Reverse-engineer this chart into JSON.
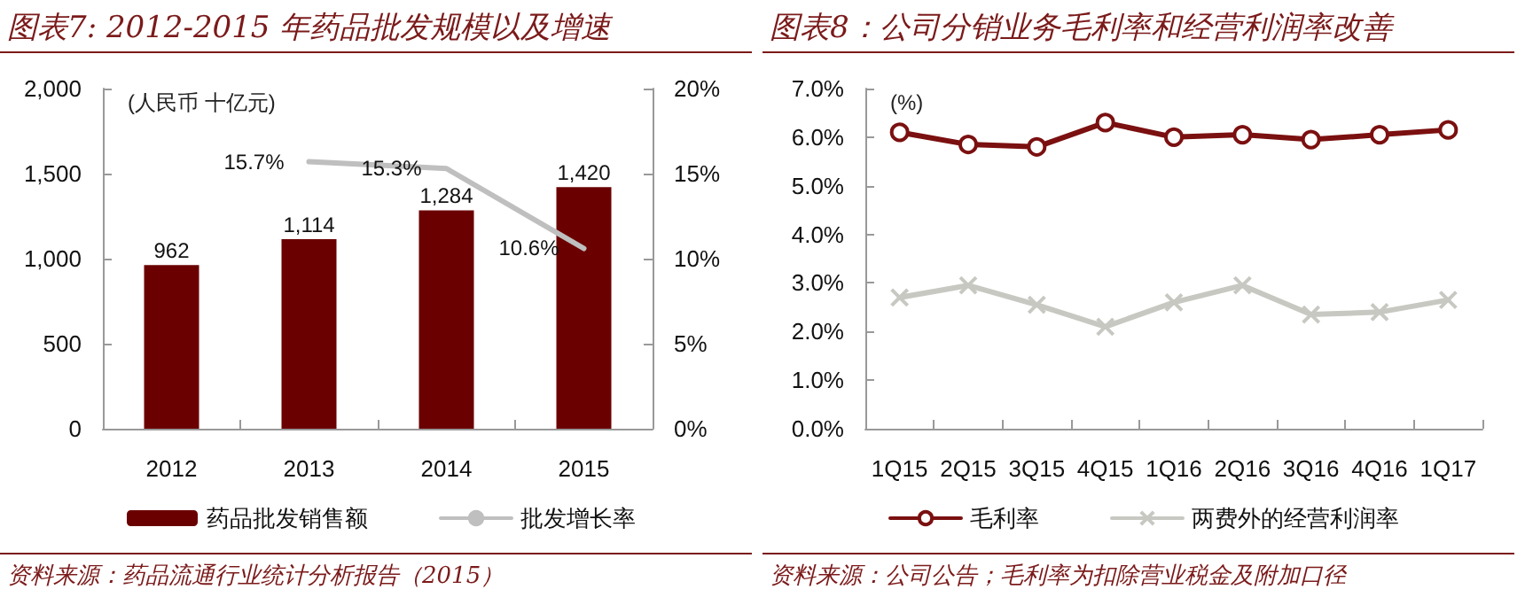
{
  "chart_data": [
    {
      "type": "bar",
      "title": "图表7: 2012-2015 年药品批发规模以及增速",
      "ylabel": "(人民币 十亿元)",
      "categories": [
        "2012",
        "2013",
        "2014",
        "2015"
      ],
      "series": [
        {
          "name": "药品批发销售额",
          "color": "#6b0000",
          "values": [
            962,
            1114,
            1284,
            1420
          ],
          "value_labels": [
            "962",
            "1,114",
            "1,284",
            "1,420"
          ]
        },
        {
          "name": "批发增长率",
          "type": "line",
          "axis": "y2",
          "color": "#bfbfbf",
          "marker": "none",
          "values": [
            null,
            15.7,
            15.3,
            10.6
          ],
          "value_labels": [
            null,
            "15.7%",
            "15.3%",
            "10.6%"
          ]
        }
      ],
      "ylim": [
        0,
        2000
      ],
      "yticks": [
        0,
        500,
        {
          "value": 1000,
          "label": "1,000"
        },
        {
          "value": 1500,
          "label": "1,500"
        },
        {
          "value": 2000,
          "label": "2,000"
        }
      ],
      "y2lim": [
        0,
        20
      ],
      "y2ticks": [
        {
          "value": 0,
          "label": "0%"
        },
        {
          "value": 5,
          "label": "5%"
        },
        {
          "value": 10,
          "label": "10%"
        },
        {
          "value": 15,
          "label": "15%"
        },
        {
          "value": 20,
          "label": "20%"
        }
      ],
      "grid": false,
      "legend": "bottom",
      "annotations": [
        "资料来源：药品流通行业统计分析报告（2015）"
      ]
    },
    {
      "type": "line",
      "title": "图表8：公司分销业务毛利率和经营利润率改善",
      "ylabel": "(%)",
      "categories": [
        "1Q15",
        "2Q15",
        "3Q15",
        "4Q15",
        "1Q16",
        "2Q16",
        "3Q16",
        "4Q16",
        "1Q17"
      ],
      "series": [
        {
          "name": "毛利率",
          "color": "#7b1010",
          "marker": "circle",
          "values": [
            6.1,
            5.85,
            5.8,
            6.3,
            6.0,
            6.05,
            5.95,
            6.05,
            6.15
          ]
        },
        {
          "name": "两费外的经营利润率",
          "color": "#c8c8c2",
          "marker": "cross",
          "values": [
            2.7,
            2.95,
            2.55,
            2.1,
            2.6,
            2.95,
            2.35,
            2.4,
            2.65
          ]
        }
      ],
      "ylim": [
        0,
        7
      ],
      "yticks": [
        {
          "value": 0,
          "label": "0.0%"
        },
        {
          "value": 1,
          "label": "1.0%"
        },
        {
          "value": 2,
          "label": "2.0%"
        },
        {
          "value": 3,
          "label": "3.0%"
        },
        {
          "value": 4,
          "label": "4.0%"
        },
        {
          "value": 5,
          "label": "5.0%"
        },
        {
          "value": 6,
          "label": "6.0%"
        },
        {
          "value": 7,
          "label": "7.0%"
        }
      ],
      "grid": false,
      "legend": "bottom",
      "annotations": [
        "资料来源：公司公告；毛利率为扣除营业税金及附加口径"
      ]
    }
  ]
}
